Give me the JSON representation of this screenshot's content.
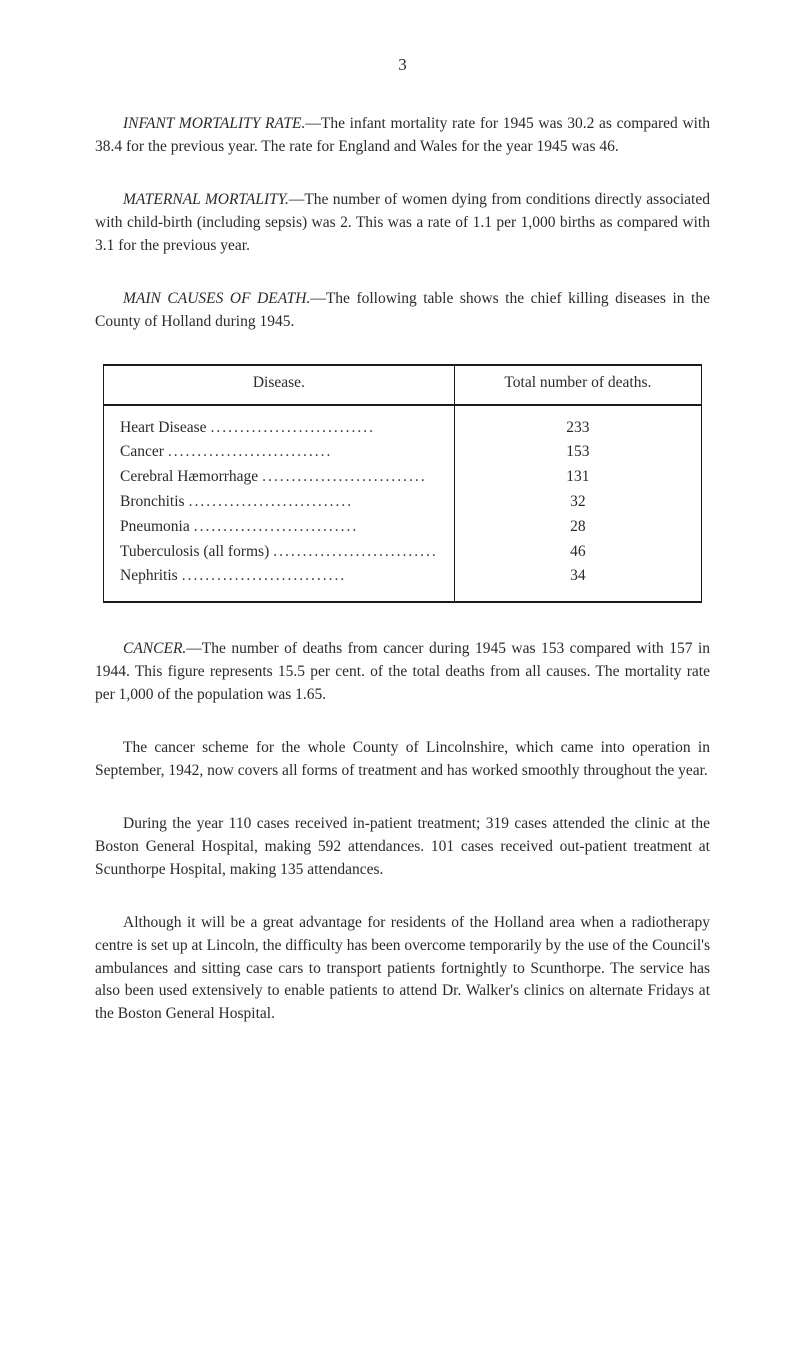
{
  "pageNumber": "3",
  "paragraphs": {
    "p1": {
      "lead": "INFANT MORTALITY RATE.",
      "rest": "—The infant mortality rate for 1945 was 30.2 as compared with 38.4 for the previous year. The rate for England and Wales for the year 1945 was 46."
    },
    "p2": {
      "lead": "MATERNAL MORTALITY.",
      "rest": "—The number of women dying from conditions directly associated with child-birth (including sepsis) was 2. This was a rate of 1.1 per 1,000 births as compared with 3.1 for the previous year."
    },
    "p3": {
      "lead": "MAIN CAUSES OF DEATH.",
      "rest": "—The following table shows the chief killing diseases in the County of Holland during 1945."
    },
    "p4": {
      "lead": "CANCER.",
      "rest": "—The number of deaths from cancer during 1945 was 153 compared with 157 in 1944. This figure represents 15.5 per cent. of the total deaths from all causes. The mortality rate per 1,000 of the population was 1.65."
    },
    "p5": "The cancer scheme for the whole County of Lincolnshire, which came into operation in September, 1942, now covers all forms of treatment and has worked smoothly throughout the year.",
    "p6": "During the year 110 cases received in-patient treatment; 319 cases attended the clinic at the Boston General Hospital, making 592 attendances. 101 cases received out-patient treatment at Scunthorpe Hospital, making 135 attendances.",
    "p7": "Although it will be a great advantage for residents of the Holland area when a radiotherapy centre is set up at Lincoln, the difficulty has been overcome temporarily by the use of the Council's ambulances and sitting case cars to transport patients fortnightly to Scunthorpe. The service has also been used extensively to enable patients to attend Dr. Walker's clinics on alternate Fridays at the Boston General Hospital."
  },
  "table": {
    "headers": {
      "disease": "Disease.",
      "deaths": "Total number of deaths."
    },
    "rows": [
      {
        "label": "Heart Disease",
        "value": "233"
      },
      {
        "label": "Cancer",
        "value": "153"
      },
      {
        "label": "Cerebral Hæmorrhage",
        "value": "131"
      },
      {
        "label": "Bronchitis",
        "value": "32"
      },
      {
        "label": "Pneumonia",
        "value": "28"
      },
      {
        "label": "Tuberculosis (all forms)",
        "value": "46"
      },
      {
        "label": "Nephritis",
        "value": "34"
      }
    ]
  }
}
